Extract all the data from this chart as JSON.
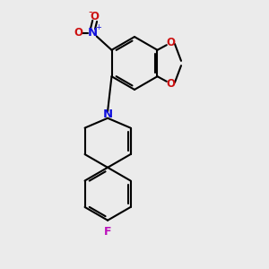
{
  "bg_color": "#ebebeb",
  "bond_color": "#000000",
  "N_color": "#1010dd",
  "O_color": "#cc1010",
  "F_color": "#bb10bb",
  "lw": 1.5,
  "fs": 8.5,
  "dpi": 100,
  "figsize": [
    3.0,
    3.0
  ],
  "xlim": [
    -2.5,
    4.5
  ],
  "ylim": [
    -4.5,
    5.5
  ]
}
